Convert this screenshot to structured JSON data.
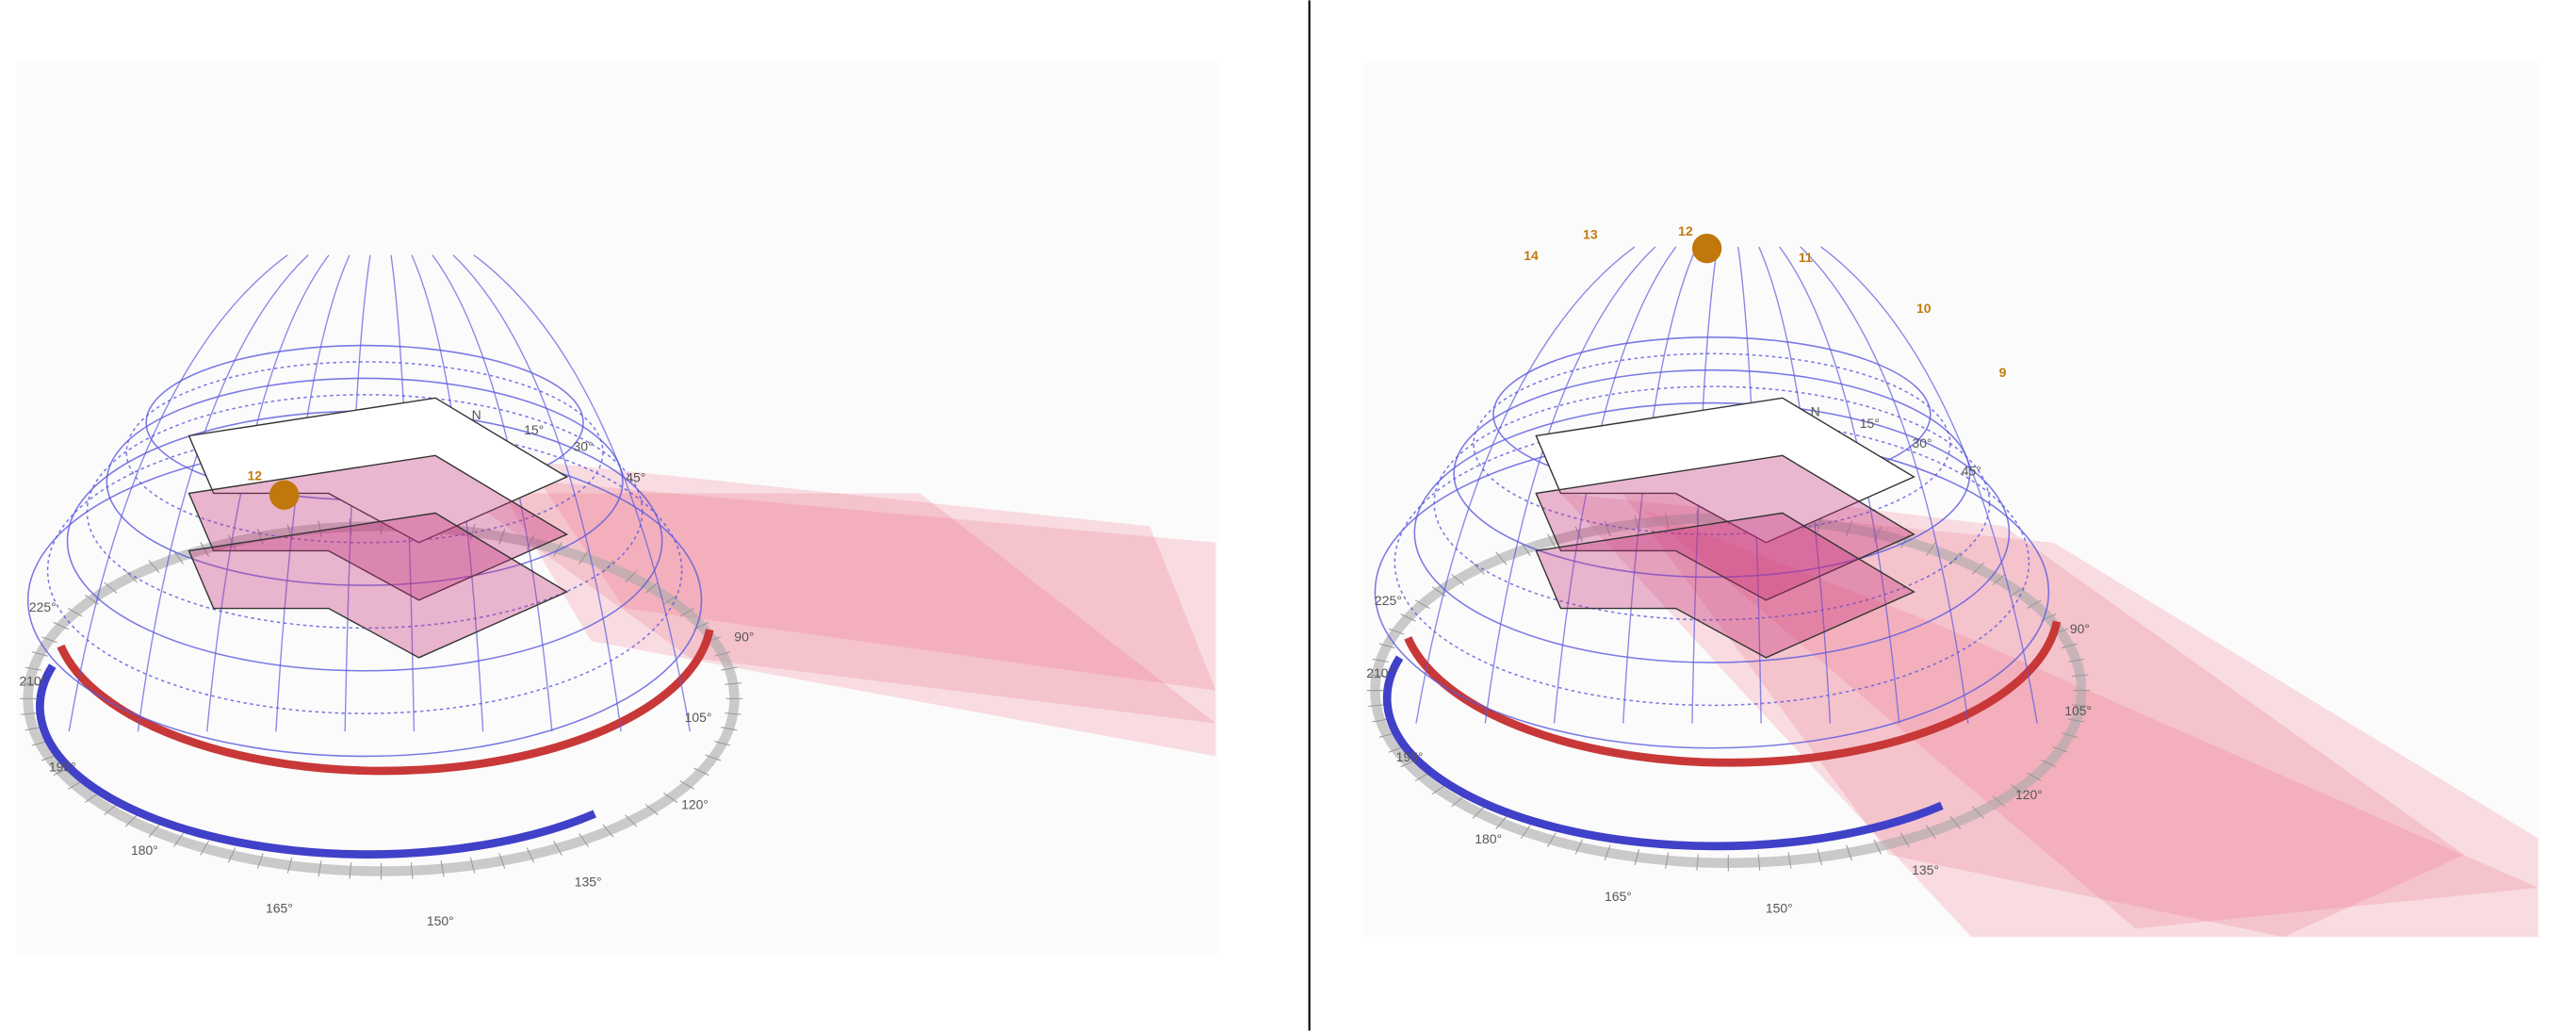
{
  "panels": [
    {
      "compass_labels": [
        "N",
        "15°",
        "30°",
        "45°",
        "90°",
        "105°",
        "120°",
        "135°",
        "150°",
        "165°",
        "180°",
        "195°",
        "210°",
        "225°"
      ],
      "hour_labels": [
        "12"
      ]
    },
    {
      "compass_labels": [
        "N",
        "15°",
        "30°",
        "45°",
        "90°",
        "105°",
        "120°",
        "135°",
        "150°",
        "165°",
        "180°",
        "195°",
        "210°",
        "225°"
      ],
      "hour_labels": [
        "14",
        "13",
        "12",
        "11",
        "10",
        "9"
      ]
    }
  ]
}
